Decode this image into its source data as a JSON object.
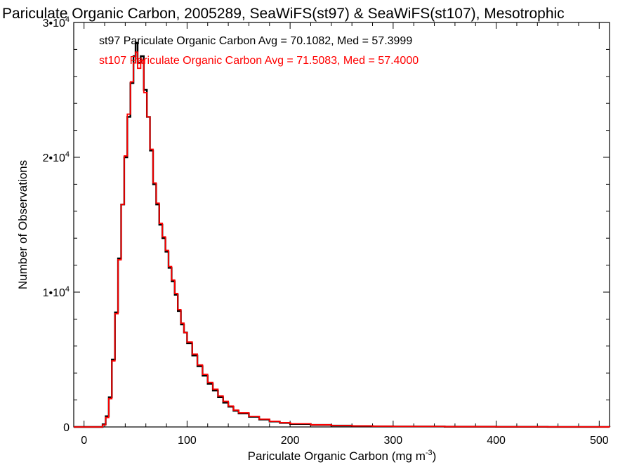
{
  "chart_data": {
    "type": "line",
    "title": "Pariculate Organic Carbon, 2005289, SeaWiFS(st97) & SeaWiFS(st107), Mesotrophic",
    "xlabel": "Pariculate Organic Carbon (mg m",
    "xlabel_sup": "-3",
    "xlabel_end": ")",
    "ylabel": "Number of Observations",
    "xlim": [
      -10,
      510
    ],
    "ylim": [
      0,
      30000
    ],
    "x_ticks": [
      0,
      100,
      200,
      300,
      400,
      500
    ],
    "x_tick_labels": [
      "0",
      "100",
      "200",
      "300",
      "400",
      "500"
    ],
    "y_ticks": [
      0,
      10000,
      20000,
      30000
    ],
    "y_tick_labels": [
      {
        "base": "0",
        "exp": ""
      },
      {
        "base": "1•10",
        "exp": "4"
      },
      {
        "base": "2•10",
        "exp": "4"
      },
      {
        "base": "3•10",
        "exp": "4"
      }
    ],
    "legend_position": "top-left",
    "series": [
      {
        "name": "st97 Pariculate Organic Carbon Avg = 70.1082, Med = 57.3999",
        "color": "#000000",
        "points": [
          [
            -10,
            0
          ],
          [
            15,
            0
          ],
          [
            18,
            200
          ],
          [
            21,
            800
          ],
          [
            24,
            2200
          ],
          [
            27,
            5000
          ],
          [
            30,
            8500
          ],
          [
            33,
            12500
          ],
          [
            36,
            16500
          ],
          [
            39,
            20000
          ],
          [
            42,
            23000
          ],
          [
            45,
            25500
          ],
          [
            48,
            27500
          ],
          [
            50,
            28500
          ],
          [
            52,
            27000
          ],
          [
            55,
            27500
          ],
          [
            58,
            25000
          ],
          [
            61,
            23000
          ],
          [
            64,
            20500
          ],
          [
            67,
            18000
          ],
          [
            70,
            16500
          ],
          [
            73,
            15000
          ],
          [
            76,
            14000
          ],
          [
            79,
            13000
          ],
          [
            82,
            11800
          ],
          [
            85,
            10800
          ],
          [
            88,
            9800
          ],
          [
            91,
            8600
          ],
          [
            94,
            7600
          ],
          [
            97,
            7000
          ],
          [
            100,
            6200
          ],
          [
            105,
            5300
          ],
          [
            110,
            4500
          ],
          [
            115,
            3800
          ],
          [
            120,
            3200
          ],
          [
            125,
            2700
          ],
          [
            130,
            2200
          ],
          [
            135,
            1800
          ],
          [
            140,
            1500
          ],
          [
            145,
            1200
          ],
          [
            150,
            1000
          ],
          [
            160,
            750
          ],
          [
            170,
            550
          ],
          [
            180,
            400
          ],
          [
            190,
            300
          ],
          [
            200,
            220
          ],
          [
            220,
            150
          ],
          [
            240,
            100
          ],
          [
            260,
            70
          ],
          [
            280,
            50
          ],
          [
            300,
            35
          ],
          [
            350,
            20
          ],
          [
            400,
            10
          ],
          [
            450,
            5
          ],
          [
            500,
            2
          ],
          [
            510,
            0
          ]
        ]
      },
      {
        "name": "st107 Pariculate Organic Carbon Avg = 71.5083, Med = 57.4000",
        "color": "#ff0000",
        "points": [
          [
            -10,
            0
          ],
          [
            15,
            0
          ],
          [
            18,
            150
          ],
          [
            21,
            700
          ],
          [
            24,
            2100
          ],
          [
            27,
            4900
          ],
          [
            30,
            8400
          ],
          [
            33,
            12400
          ],
          [
            36,
            16500
          ],
          [
            39,
            20100
          ],
          [
            42,
            23200
          ],
          [
            45,
            25600
          ],
          [
            48,
            27000
          ],
          [
            50,
            27800
          ],
          [
            52,
            26600
          ],
          [
            55,
            27200
          ],
          [
            58,
            24800
          ],
          [
            61,
            23000
          ],
          [
            64,
            20600
          ],
          [
            67,
            18100
          ],
          [
            70,
            16600
          ],
          [
            73,
            15100
          ],
          [
            76,
            14100
          ],
          [
            79,
            13100
          ],
          [
            82,
            11900
          ],
          [
            85,
            10900
          ],
          [
            88,
            9900
          ],
          [
            91,
            8700
          ],
          [
            94,
            7700
          ],
          [
            97,
            7000
          ],
          [
            100,
            6300
          ],
          [
            105,
            5400
          ],
          [
            110,
            4600
          ],
          [
            115,
            3900
          ],
          [
            120,
            3300
          ],
          [
            125,
            2800
          ],
          [
            130,
            2300
          ],
          [
            135,
            1900
          ],
          [
            140,
            1550
          ],
          [
            145,
            1250
          ],
          [
            150,
            1050
          ],
          [
            160,
            780
          ],
          [
            170,
            580
          ],
          [
            180,
            420
          ],
          [
            190,
            320
          ],
          [
            200,
            240
          ],
          [
            220,
            160
          ],
          [
            240,
            110
          ],
          [
            260,
            75
          ],
          [
            280,
            55
          ],
          [
            300,
            40
          ],
          [
            350,
            22
          ],
          [
            400,
            12
          ],
          [
            450,
            6
          ],
          [
            500,
            3
          ],
          [
            510,
            0
          ]
        ]
      }
    ]
  }
}
